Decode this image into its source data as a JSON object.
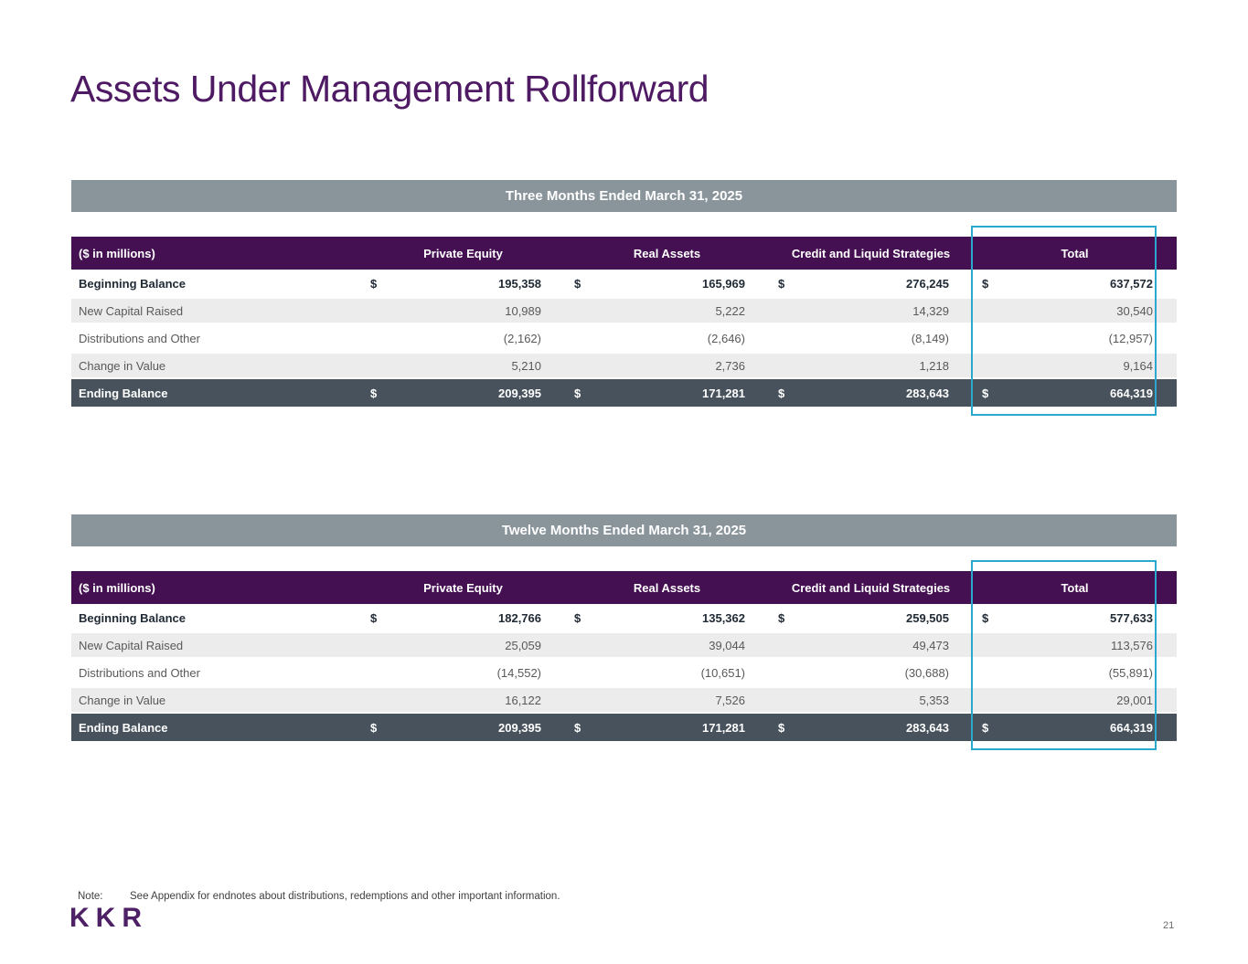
{
  "slide": {
    "title": "Assets Under Management Rollforward",
    "note_label": "Note:",
    "note_text": "See Appendix for endnotes about distributions, redemptions and other important information.",
    "logo_text": "KKR",
    "page_number": "21"
  },
  "colors": {
    "title_purple": "#4e1a63",
    "table_header_purple": "#451052",
    "period_band_gray": "#8a949b",
    "ending_row_slate": "#47525c",
    "alt_row_gray": "#ececec",
    "highlight_teal": "#2ba9cc"
  },
  "tables": [
    {
      "period": "Three Months Ended March 31, 2025",
      "columns": [
        "($ in millions)",
        "Private Equity",
        "Real Assets",
        "Credit and Liquid Strategies",
        "Total"
      ],
      "rows": [
        {
          "label": "Beginning Balance",
          "style": "beginning",
          "dollar": true,
          "values": [
            "195,358",
            "165,969",
            "276,245",
            "637,572"
          ]
        },
        {
          "label": "New Capital Raised",
          "style": "alt",
          "dollar": false,
          "values": [
            "10,989",
            "5,222",
            "14,329",
            "30,540"
          ]
        },
        {
          "label": "Distributions and Other",
          "style": "plain",
          "dollar": false,
          "values": [
            "(2,162)",
            "(2,646)",
            "(8,149)",
            "(12,957)"
          ]
        },
        {
          "label": "Change in Value",
          "style": "alt",
          "dollar": false,
          "values": [
            "5,210",
            "2,736",
            "1,218",
            "9,164"
          ]
        },
        {
          "label": "Ending Balance",
          "style": "ending",
          "dollar": true,
          "values": [
            "209,395",
            "171,281",
            "283,643",
            "664,319"
          ]
        }
      ]
    },
    {
      "period": "Twelve Months Ended March 31, 2025",
      "columns": [
        "($ in millions)",
        "Private Equity",
        "Real Assets",
        "Credit and Liquid Strategies",
        "Total"
      ],
      "rows": [
        {
          "label": "Beginning Balance",
          "style": "beginning",
          "dollar": true,
          "values": [
            "182,766",
            "135,362",
            "259,505",
            "577,633"
          ]
        },
        {
          "label": "New Capital Raised",
          "style": "alt",
          "dollar": false,
          "values": [
            "25,059",
            "39,044",
            "49,473",
            "113,576"
          ]
        },
        {
          "label": "Distributions and Other",
          "style": "plain",
          "dollar": false,
          "values": [
            "(14,552)",
            "(10,651)",
            "(30,688)",
            "(55,891)"
          ]
        },
        {
          "label": "Change in Value",
          "style": "alt",
          "dollar": false,
          "values": [
            "16,122",
            "7,526",
            "5,353",
            "29,001"
          ]
        },
        {
          "label": "Ending Balance",
          "style": "ending",
          "dollar": true,
          "values": [
            "209,395",
            "171,281",
            "283,643",
            "664,319"
          ]
        }
      ]
    }
  ]
}
